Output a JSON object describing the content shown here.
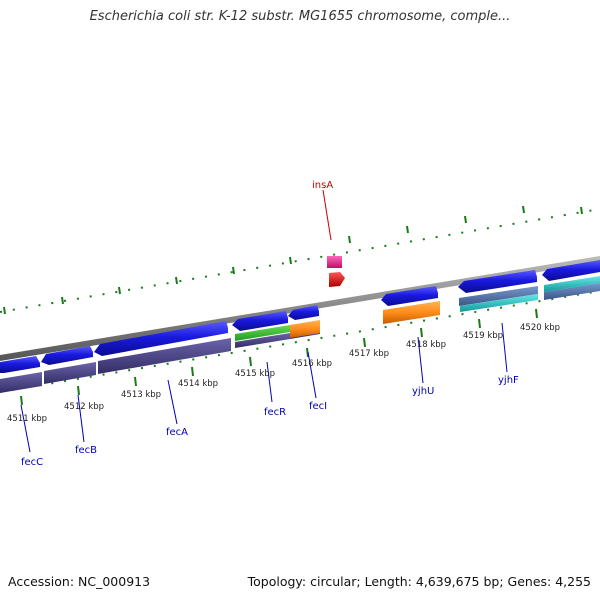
{
  "title": "Escherichia coli str. K-12 substr. MG1655 chromosome, comple...",
  "footer": {
    "accession": "Accession: NC_000913",
    "summary": "Topology: circular; Length: 4,639,675 bp; Genes: 4,255"
  },
  "colors": {
    "backbone": "#888888",
    "tick": "#1a7a1a",
    "gene_blue": "#1a1ae0",
    "mrna_purple": "#4a4488",
    "cds_green": "#33bb33",
    "orange": "#ff8c1a",
    "mobile_pink": "#ee2288",
    "mobile_red": "#ee1111",
    "cyan": "#22cccc",
    "steel": "#5577aa",
    "label_blue": "#0000bb",
    "label_red": "#cc0000"
  },
  "scale_labels": [
    "4511 kbp",
    "4512 kbp",
    "4513 kbp",
    "4514 kbp",
    "4515 kbp",
    "4516 kbp",
    "4517 kbp",
    "4518 kbp",
    "4519 kbp",
    "4520 kbp"
  ],
  "gene_labels": {
    "fecC": "fecC",
    "fecB": "fecB",
    "fecA": "fecA",
    "fecR": "fecR",
    "fecI": "fecI",
    "yjhU": "yjhU",
    "yjhF": "yjhF",
    "insA": "insA"
  }
}
